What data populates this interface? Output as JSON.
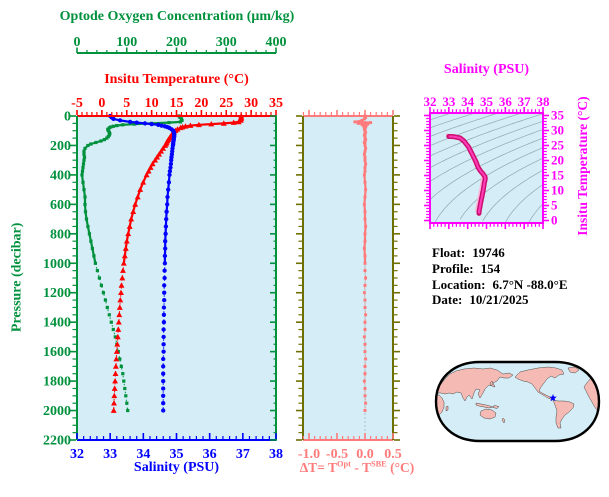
{
  "colors": {
    "plot_background": "#d4edf6",
    "green": "#00913d",
    "red": "#ff0000",
    "blue": "#0000ff",
    "salmon": "#ff7b7b",
    "olive": "#6f6f00",
    "magenta": "#ff00ff",
    "ts_curve": "#cc0e6e",
    "ts_curve_bright": "#ff3dbb",
    "ts_curve_shadow": "#ffb3d9",
    "contour_gray": "#8fa8b0",
    "map_land": "#f5bab3",
    "map_coast": "#3a3a3a",
    "map_outline": "#000000",
    "map_marker": "#0000ff",
    "text": "#000000"
  },
  "axes": {
    "oxygen": {
      "title": "Optode Oxygen Concentration (μm/kg)",
      "min": 0,
      "max": 400,
      "majors": [
        0,
        100,
        200,
        300,
        400
      ],
      "minor": 20
    },
    "temperature": {
      "title": "Insitu Temperature (°C)",
      "min": -5,
      "max": 35,
      "majors": [
        -5,
        0,
        5,
        10,
        15,
        20,
        25,
        30,
        35
      ],
      "minor": 1
    },
    "salinity": {
      "title": "Salinity (PSU)",
      "min": 32,
      "max": 38,
      "majors": [
        32,
        33,
        34,
        35,
        36,
        37,
        38
      ],
      "minor": 0.2
    },
    "pressure": {
      "title": "Pressure (decibar)",
      "min": 0,
      "max": 2200,
      "majors": [
        0,
        200,
        400,
        600,
        800,
        1000,
        1200,
        1400,
        1600,
        1800,
        2000,
        2200
      ],
      "minor": 50
    },
    "delta": {
      "title_p1": "ΔT= T",
      "title_sup1": "Opt",
      "title_p2": " - T",
      "title_sup2": "SBE",
      "title_p3": " (°C)",
      "min": -1.107,
      "max": 0.5,
      "majors": [
        -1.0,
        -0.5,
        0.0,
        0.5
      ],
      "major_labels": [
        "-1.0",
        "-0.5",
        "0.0",
        "0.5"
      ],
      "minor": 0.1
    },
    "ts_salinity": {
      "title": "Salinity (PSU)",
      "min": 32,
      "max": 38,
      "majors": [
        32,
        33,
        34,
        35,
        36,
        37,
        38
      ],
      "minor": 0.2
    },
    "ts_temperature": {
      "title": "Insitu Temperature (°C)",
      "min": 0,
      "max": 35,
      "majors": [
        0,
        5,
        10,
        15,
        20,
        25,
        30,
        35
      ],
      "minor": 1
    }
  },
  "info": {
    "row1": {
      "label": "Float:",
      "value": "19746"
    },
    "row2": {
      "label": "Profile:",
      "value": "154"
    },
    "row3": {
      "label": "Location:",
      "value": "6.7°N  -88.0°E"
    },
    "row4": {
      "label": "Date:",
      "value": "10/21/2025"
    }
  },
  "chart_data": {
    "type": "line",
    "description": "Vertical ocean profiles from float 19746 profile 154: temperature, salinity and optode oxygen vs pressure; optode-minus-SBE temperature difference vs pressure; T-S diagram with density contours; location map.",
    "ylabel": "Pressure (decibar)",
    "ylim": [
      0,
      2200
    ],
    "pressure_levels": [
      0,
      10,
      20,
      30,
      40,
      45,
      50,
      55,
      60,
      65,
      70,
      75,
      80,
      90,
      100,
      110,
      120,
      130,
      140,
      150,
      160,
      170,
      180,
      190,
      200,
      220,
      240,
      260,
      280,
      300,
      325,
      350,
      375,
      400,
      450,
      500,
      550,
      600,
      650,
      700,
      750,
      800,
      850,
      900,
      950,
      1000,
      1050,
      1100,
      1150,
      1200,
      1250,
      1300,
      1350,
      1400,
      1450,
      1500,
      1550,
      1600,
      1650,
      1700,
      1750,
      1800,
      1850,
      1900,
      1950,
      2000
    ],
    "profiles": [
      {
        "name": "Insitu Temperature",
        "axis": "temperature",
        "units": "°C",
        "color": "#ff0000",
        "marker": "triangle",
        "values": [
          28.0,
          28.0,
          28.0,
          27.9,
          27.5,
          26.5,
          24.5,
          22.0,
          19.5,
          17.8,
          16.8,
          16.2,
          15.8,
          15.2,
          14.8,
          14.5,
          14.2,
          14.0,
          13.8,
          13.6,
          13.4,
          13.2,
          13.0,
          12.9,
          12.7,
          12.3,
          11.9,
          11.5,
          11.1,
          10.7,
          10.2,
          9.8,
          9.4,
          9.0,
          8.3,
          7.7,
          7.2,
          6.7,
          6.3,
          5.9,
          5.6,
          5.3,
          5.0,
          4.8,
          4.6,
          4.4,
          4.25,
          4.1,
          3.95,
          3.85,
          3.7,
          3.6,
          3.5,
          3.4,
          3.3,
          3.2,
          3.1,
          3.0,
          2.9,
          2.82,
          2.74,
          2.66,
          2.58,
          2.5,
          2.44,
          2.38
        ]
      },
      {
        "name": "Salinity",
        "axis": "salinity",
        "units": "PSU",
        "color": "#0000ff",
        "marker": "circle",
        "values": [
          33.0,
          33.05,
          33.1,
          33.3,
          33.6,
          33.8,
          34.05,
          34.25,
          34.45,
          34.55,
          34.65,
          34.72,
          34.78,
          34.85,
          34.9,
          34.92,
          34.93,
          34.93,
          34.93,
          34.92,
          34.92,
          34.91,
          34.9,
          34.9,
          34.89,
          34.88,
          34.87,
          34.86,
          34.85,
          34.84,
          34.83,
          34.82,
          34.8,
          34.79,
          34.77,
          34.75,
          34.73,
          34.72,
          34.7,
          34.69,
          34.68,
          34.67,
          34.66,
          34.66,
          34.65,
          34.65,
          34.64,
          34.64,
          34.63,
          34.63,
          34.63,
          34.62,
          34.62,
          34.62,
          34.61,
          34.61,
          34.61,
          34.61,
          34.6,
          34.6,
          34.6,
          34.6,
          34.6,
          34.6,
          34.6,
          34.6
        ]
      },
      {
        "name": "Optode Oxygen Concentration",
        "axis": "oxygen",
        "units": "μm/kg",
        "color": "#00913d",
        "marker": "square",
        "values": [
          205,
          207,
          210,
          211,
          208,
          185,
          150,
          115,
          92,
          80,
          73,
          68,
          65,
          62,
          63,
          65,
          66,
          65,
          63,
          60,
          55,
          48,
          38,
          28,
          22,
          16,
          14,
          14,
          15,
          14,
          13,
          12,
          11,
          10,
          12,
          14,
          16,
          16,
          17,
          19,
          22,
          25,
          28,
          31,
          34,
          37,
          41,
          45,
          49,
          53,
          57,
          61,
          65,
          69,
          73,
          77,
          80,
          83,
          86,
          89,
          92,
          94,
          96,
          98,
          100,
          102
        ]
      }
    ],
    "delta_profile": {
      "name": "ΔT = T Opt - T SBE",
      "units": "°C",
      "color": "#ff7b7b",
      "marker": "square",
      "xlim": [
        -1.107,
        0.5
      ],
      "values": [
        0.0,
        0.01,
        -0.01,
        -0.05,
        -0.18,
        0.1,
        -0.12,
        0.05,
        -0.05,
        0.02,
        -0.02,
        0.01,
        0.0,
        -0.01,
        0.0,
        0.01,
        0.0,
        -0.01,
        0.0,
        0.0,
        0.01,
        0.0,
        -0.01,
        0.0,
        0.0,
        0.01,
        0.0,
        -0.01,
        0.0,
        0.0,
        0.01,
        0.0,
        0.0,
        -0.01,
        0.0,
        0.01,
        0.0,
        -0.01,
        0.0,
        0.0,
        0.01,
        0.0,
        0.0,
        -0.01,
        0.0,
        0.0,
        0.0,
        0.01,
        0.0,
        -0.01,
        0.0,
        0.0,
        0.01,
        0.0,
        0.0,
        -0.01,
        0.0,
        0.0,
        0.01,
        0.0,
        0.0,
        -0.01,
        0.0,
        0.0,
        0.01,
        0.0
      ]
    },
    "ts_diagram": {
      "name": "T-S curve",
      "x_from": "Salinity",
      "y_from": "Insitu Temperature",
      "xlim": [
        32,
        38
      ],
      "ylim": [
        0,
        35
      ],
      "background_contours": "sigma-t isopycnals"
    }
  },
  "map": {
    "marker": "star",
    "marker_color": "#0000ff"
  }
}
